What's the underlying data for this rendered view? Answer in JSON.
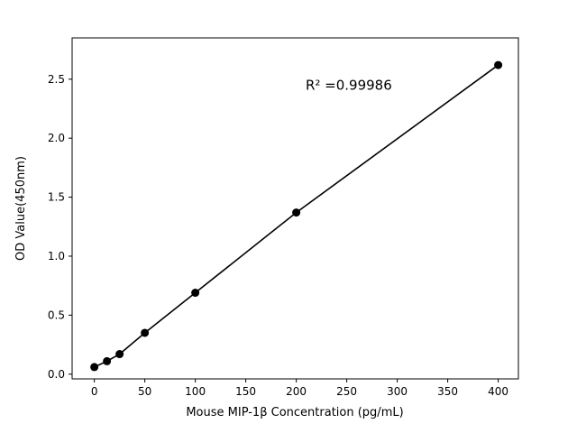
{
  "figure": {
    "background": "#ffffff"
  },
  "chart_data": {
    "type": "scatter",
    "title": "",
    "xlabel": "Mouse MIP-1β Concentration (pg/mL)",
    "ylabel": "OD Value(450nm)",
    "x": [
      0,
      12.5,
      25,
      50,
      100,
      200,
      400
    ],
    "y": [
      0.06,
      0.11,
      0.17,
      0.35,
      0.69,
      1.37,
      2.62
    ],
    "line": true,
    "line_color": "#000000",
    "marker_color": "#000000",
    "xlim": [
      -22,
      420
    ],
    "ylim": [
      -0.04,
      2.85
    ],
    "xticks": [
      0,
      50,
      100,
      150,
      200,
      250,
      300,
      350,
      400
    ],
    "yticks": [
      0.0,
      0.5,
      1.0,
      1.5,
      2.0,
      2.5
    ],
    "grid": false,
    "legend": null,
    "annotation": {
      "text": "R² =0.99986",
      "x": 252,
      "y": 2.41
    }
  }
}
